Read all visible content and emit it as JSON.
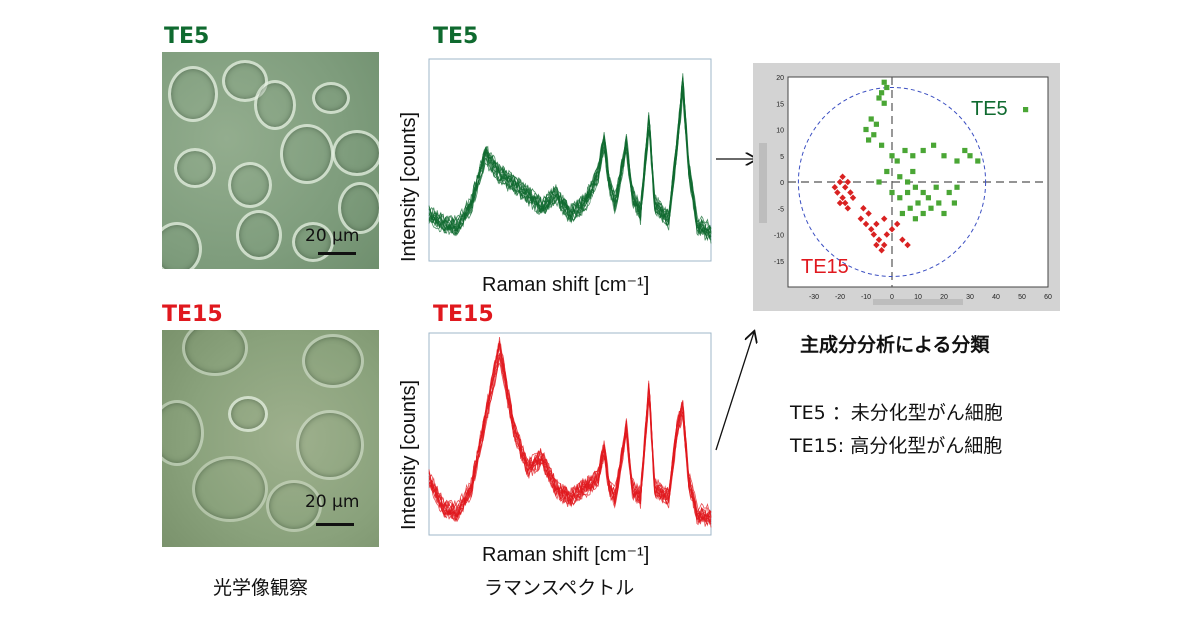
{
  "panels": {
    "te5": {
      "micro_label": "TE5",
      "spectrum_label": "TE5",
      "scale_text": "20 μm",
      "color": "#0f6a2f"
    },
    "te15": {
      "micro_label": "TE15",
      "spectrum_label": "TE15",
      "scale_text": "20 μm",
      "color": "#e0181e"
    }
  },
  "spectrum_axes": {
    "ylabel": "Intensity [counts]",
    "xlabel": "Raman shift [cm⁻¹]"
  },
  "captions": {
    "optical": "光学像観察",
    "raman": "ラマンスペクトル",
    "pca": "主成分分析による分類"
  },
  "legend": {
    "line1": "TE5 ：未分化型がん細胞",
    "line2": "TE15: 高分化型がん細胞"
  },
  "chart_data": [
    {
      "type": "line",
      "name": "TE5 Raman spectra",
      "xlabel": "Raman shift [cm-1]",
      "ylabel": "Intensity [counts]",
      "color": "#0f6a2f",
      "x": [
        0,
        0.05,
        0.1,
        0.15,
        0.2,
        0.25,
        0.3,
        0.35,
        0.4,
        0.45,
        0.5,
        0.55,
        0.6,
        0.62,
        0.64,
        0.66,
        0.7,
        0.72,
        0.75,
        0.78,
        0.8,
        0.85,
        0.88,
        0.9,
        0.92,
        0.95,
        1.0
      ],
      "y": [
        0.25,
        0.2,
        0.18,
        0.3,
        0.55,
        0.45,
        0.4,
        0.35,
        0.28,
        0.35,
        0.25,
        0.3,
        0.45,
        0.62,
        0.4,
        0.3,
        0.6,
        0.35,
        0.25,
        0.72,
        0.3,
        0.22,
        0.6,
        0.9,
        0.5,
        0.2,
        0.15
      ]
    },
    {
      "type": "line",
      "name": "TE15 Raman spectra",
      "xlabel": "Raman shift [cm-1]",
      "ylabel": "Intensity [counts]",
      "color": "#e0181e",
      "x": [
        0,
        0.05,
        0.1,
        0.15,
        0.2,
        0.25,
        0.3,
        0.35,
        0.4,
        0.45,
        0.5,
        0.55,
        0.6,
        0.62,
        0.64,
        0.66,
        0.7,
        0.72,
        0.75,
        0.78,
        0.8,
        0.85,
        0.88,
        0.9,
        0.92,
        0.95,
        1.0
      ],
      "y": [
        0.3,
        0.15,
        0.12,
        0.25,
        0.6,
        0.95,
        0.55,
        0.35,
        0.4,
        0.25,
        0.2,
        0.25,
        0.3,
        0.45,
        0.25,
        0.2,
        0.55,
        0.25,
        0.2,
        0.75,
        0.25,
        0.2,
        0.55,
        0.65,
        0.3,
        0.12,
        0.1
      ]
    },
    {
      "type": "scatter",
      "name": "PCA score plot",
      "xlim": [
        -40,
        60
      ],
      "ylim": [
        -20,
        20
      ],
      "xticks": [
        -30,
        -20,
        -10,
        0,
        10,
        20,
        30,
        40,
        50,
        60
      ],
      "yticks": [
        20,
        15,
        10,
        5,
        0,
        -5,
        -10,
        -15
      ],
      "series": [
        {
          "name": "TE5",
          "color": "#4aa635",
          "marker": "square",
          "points": [
            [
              -3,
              19
            ],
            [
              -2,
              18
            ],
            [
              -4,
              17
            ],
            [
              -5,
              16
            ],
            [
              -3,
              15
            ],
            [
              -8,
              12
            ],
            [
              -6,
              11
            ],
            [
              -10,
              10
            ],
            [
              -7,
              9
            ],
            [
              -9,
              8
            ],
            [
              -4,
              7
            ],
            [
              0,
              5
            ],
            [
              2,
              4
            ],
            [
              5,
              6
            ],
            [
              8,
              5
            ],
            [
              12,
              6
            ],
            [
              16,
              7
            ],
            [
              20,
              5
            ],
            [
              25,
              4
            ],
            [
              28,
              6
            ],
            [
              30,
              5
            ],
            [
              33,
              4
            ],
            [
              -2,
              2
            ],
            [
              3,
              1
            ],
            [
              6,
              0
            ],
            [
              9,
              -1
            ],
            [
              12,
              -2
            ],
            [
              14,
              -3
            ],
            [
              17,
              -1
            ],
            [
              10,
              -4
            ],
            [
              7,
              -5
            ],
            [
              4,
              -6
            ],
            [
              18,
              -4
            ],
            [
              15,
              -5
            ],
            [
              12,
              -6
            ],
            [
              9,
              -7
            ],
            [
              22,
              -2
            ],
            [
              25,
              -1
            ],
            [
              -5,
              0
            ],
            [
              0,
              -2
            ],
            [
              3,
              -3
            ],
            [
              6,
              -2
            ],
            [
              8,
              2
            ],
            [
              20,
              -6
            ],
            [
              24,
              -4
            ]
          ]
        },
        {
          "name": "TE15",
          "color": "#d92121",
          "marker": "diamond",
          "points": [
            [
              -18,
              -1
            ],
            [
              -20,
              0
            ],
            [
              -19,
              1
            ],
            [
              -17,
              0
            ],
            [
              -21,
              -2
            ],
            [
              -19,
              -3
            ],
            [
              -16,
              -2
            ],
            [
              -22,
              -1
            ],
            [
              -18,
              -4
            ],
            [
              -15,
              -3
            ],
            [
              -20,
              -4
            ],
            [
              -17,
              -5
            ],
            [
              -12,
              -7
            ],
            [
              -10,
              -8
            ],
            [
              -8,
              -9
            ],
            [
              -7,
              -10
            ],
            [
              -5,
              -11
            ],
            [
              -3,
              -12
            ],
            [
              -6,
              -12
            ],
            [
              -4,
              -13
            ],
            [
              -2,
              -10
            ],
            [
              0,
              -9
            ],
            [
              2,
              -8
            ],
            [
              4,
              -11
            ],
            [
              6,
              -12
            ],
            [
              -9,
              -6
            ],
            [
              -11,
              -5
            ],
            [
              -6,
              -8
            ],
            [
              -3,
              -7
            ]
          ]
        }
      ],
      "annotations": [
        {
          "text": "TE5",
          "color": "#0f6a2f"
        },
        {
          "text": "TE15",
          "color": "#e0181e"
        }
      ]
    }
  ]
}
